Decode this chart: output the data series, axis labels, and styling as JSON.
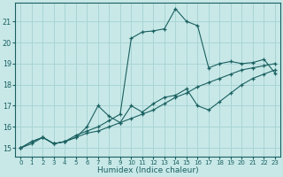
{
  "xlabel": "Humidex (Indice chaleur)",
  "background_color": "#c8e8e8",
  "grid_color": "#aad4d4",
  "line_color": "#1a6060",
  "xlim": [
    -0.5,
    23.5
  ],
  "ylim": [
    14.6,
    21.9
  ],
  "yticks": [
    15,
    16,
    17,
    18,
    19,
    20,
    21
  ],
  "xticks": [
    0,
    1,
    2,
    3,
    4,
    5,
    6,
    7,
    8,
    9,
    10,
    11,
    12,
    13,
    14,
    15,
    16,
    17,
    18,
    19,
    20,
    21,
    22,
    23
  ],
  "line_bottom_x": [
    0,
    1,
    2,
    3,
    4,
    5,
    6,
    7,
    8,
    9,
    10,
    11,
    12,
    13,
    14,
    15,
    16,
    17,
    18,
    19,
    20,
    21,
    22,
    23
  ],
  "line_bottom_y": [
    15.0,
    15.2,
    15.5,
    15.2,
    15.3,
    15.5,
    15.7,
    15.8,
    16.0,
    16.2,
    16.4,
    16.6,
    16.8,
    17.1,
    17.4,
    17.6,
    17.9,
    18.1,
    18.3,
    18.5,
    18.7,
    18.8,
    18.9,
    19.0
  ],
  "line_mid_x": [
    0,
    1,
    2,
    3,
    4,
    5,
    6,
    7,
    8,
    9,
    10,
    11,
    12,
    13,
    14,
    15,
    16,
    17,
    18,
    19,
    20,
    21,
    22,
    23
  ],
  "line_mid_y": [
    15.0,
    15.3,
    15.5,
    15.2,
    15.3,
    15.5,
    16.0,
    17.0,
    16.5,
    16.2,
    17.0,
    16.7,
    17.1,
    17.4,
    17.5,
    17.8,
    17.0,
    16.8,
    17.2,
    17.6,
    18.0,
    18.3,
    18.5,
    18.7
  ],
  "line_top_x": [
    0,
    1,
    2,
    3,
    4,
    5,
    6,
    7,
    8,
    9,
    10,
    11,
    12,
    13,
    14,
    15,
    16,
    17,
    18,
    19,
    20,
    21,
    22,
    23
  ],
  "line_top_y": [
    15.0,
    15.3,
    15.5,
    15.2,
    15.3,
    15.6,
    15.8,
    16.0,
    16.3,
    16.6,
    20.2,
    20.5,
    20.55,
    20.65,
    21.6,
    21.0,
    20.8,
    18.8,
    19.0,
    19.1,
    19.0,
    19.05,
    19.2,
    18.55
  ]
}
